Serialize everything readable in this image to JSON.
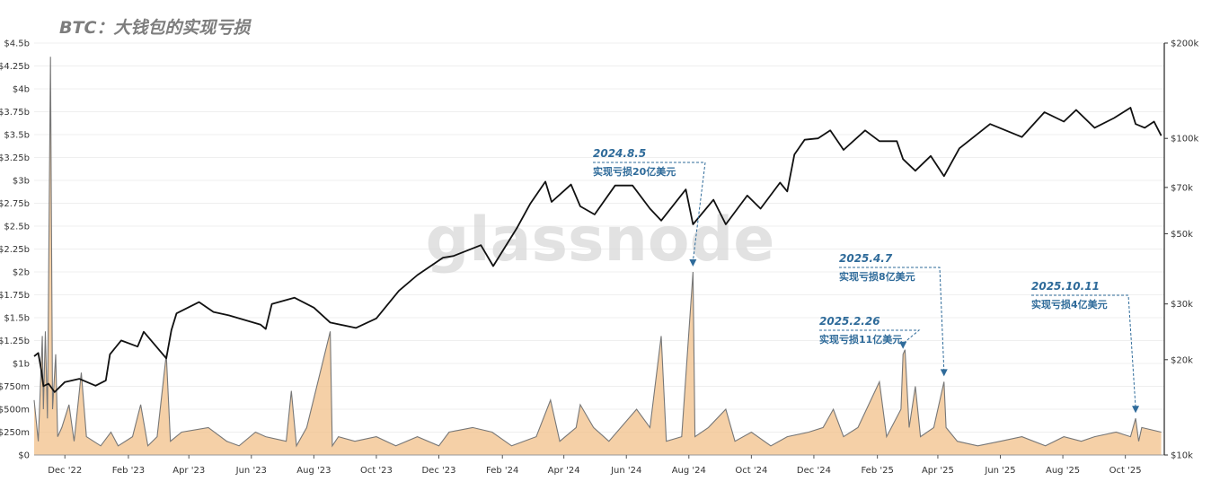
{
  "title": "BTC：大钱包的实现亏损",
  "watermark": "glassnode",
  "colors": {
    "price_line": "#111111",
    "loss_line": "#777777",
    "loss_fill": "#f2c08a",
    "annotation": "#2f6b9a",
    "grid": "#efefef"
  },
  "chart_data": {
    "type": "line",
    "x_range": [
      "2022-11-01",
      "2025-11-08"
    ],
    "y_left": {
      "scale": "linear",
      "range": [
        0,
        4.5
      ],
      "unit": "billion USD",
      "ticks": [
        0,
        0.25,
        0.5,
        0.75,
        1,
        1.25,
        1.5,
        1.75,
        2,
        2.25,
        2.5,
        2.75,
        3,
        3.25,
        3.5,
        3.75,
        4,
        4.25,
        4.5
      ],
      "tick_labels": [
        "$0",
        "$250m",
        "$500m",
        "$750m",
        "$1b",
        "$1.25b",
        "$1.5b",
        "$1.75b",
        "$2b",
        "$2.25b",
        "$2.5b",
        "$2.75b",
        "$3b",
        "$3.25b",
        "$3.5b",
        "$3.75b",
        "$4b",
        "$4.25b",
        "$4.5b"
      ]
    },
    "y_right": {
      "scale": "log",
      "range": [
        10000,
        200000
      ],
      "ticks": [
        10000,
        20000,
        30000,
        50000,
        70000,
        100000,
        200000
      ],
      "tick_labels": [
        "$10k",
        "$20k",
        "$30k",
        "$50k",
        "$70k",
        "$100k",
        "$200k"
      ]
    },
    "x_ticks": [
      {
        "date": "2022-12-01",
        "label": "Dec '22"
      },
      {
        "date": "2023-02-01",
        "label": "Feb '23"
      },
      {
        "date": "2023-04-01",
        "label": "Apr '23"
      },
      {
        "date": "2023-06-01",
        "label": "Jun '23"
      },
      {
        "date": "2023-08-01",
        "label": "Aug '23"
      },
      {
        "date": "2023-10-01",
        "label": "Oct '23"
      },
      {
        "date": "2023-12-01",
        "label": "Dec '23"
      },
      {
        "date": "2024-02-01",
        "label": "Feb '24"
      },
      {
        "date": "2024-04-01",
        "label": "Apr '24"
      },
      {
        "date": "2024-06-01",
        "label": "Jun '24"
      },
      {
        "date": "2024-08-01",
        "label": "Aug '24"
      },
      {
        "date": "2024-10-01",
        "label": "Oct '24"
      },
      {
        "date": "2024-12-01",
        "label": "Dec '24"
      },
      {
        "date": "2025-02-01",
        "label": "Feb '25"
      },
      {
        "date": "2025-04-01",
        "label": "Apr '25"
      },
      {
        "date": "2025-06-01",
        "label": "Jun '25"
      },
      {
        "date": "2025-08-01",
        "label": "Aug '25"
      },
      {
        "date": "2025-10-01",
        "label": "Oct '25"
      }
    ],
    "series": [
      {
        "axis": "right",
        "style": "line",
        "color": "#111111",
        "points": [
          [
            "2022-11-01",
            20500
          ],
          [
            "2022-11-05",
            21000
          ],
          [
            "2022-11-08",
            18500
          ],
          [
            "2022-11-10",
            16500
          ],
          [
            "2022-11-15",
            16800
          ],
          [
            "2022-11-21",
            15800
          ],
          [
            "2022-12-01",
            17000
          ],
          [
            "2022-12-15",
            17400
          ],
          [
            "2022-12-31",
            16550
          ],
          [
            "2023-01-10",
            17200
          ],
          [
            "2023-01-14",
            20800
          ],
          [
            "2023-01-25",
            23000
          ],
          [
            "2023-02-10",
            22000
          ],
          [
            "2023-02-16",
            24500
          ],
          [
            "2023-03-10",
            20200
          ],
          [
            "2023-03-15",
            24800
          ],
          [
            "2023-03-20",
            28000
          ],
          [
            "2023-04-11",
            30400
          ],
          [
            "2023-04-25",
            28300
          ],
          [
            "2023-05-10",
            27600
          ],
          [
            "2023-06-10",
            25800
          ],
          [
            "2023-06-15",
            25000
          ],
          [
            "2023-06-21",
            30000
          ],
          [
            "2023-07-13",
            31400
          ],
          [
            "2023-08-01",
            29200
          ],
          [
            "2023-08-17",
            26200
          ],
          [
            "2023-09-11",
            25200
          ],
          [
            "2023-10-01",
            27000
          ],
          [
            "2023-10-23",
            33000
          ],
          [
            "2023-11-10",
            37000
          ],
          [
            "2023-12-05",
            42000
          ],
          [
            "2023-12-15",
            42500
          ],
          [
            "2024-01-11",
            46000
          ],
          [
            "2024-01-23",
            39500
          ],
          [
            "2024-02-15",
            52000
          ],
          [
            "2024-02-28",
            62000
          ],
          [
            "2024-03-14",
            73000
          ],
          [
            "2024-03-20",
            63000
          ],
          [
            "2024-04-08",
            71500
          ],
          [
            "2024-04-17",
            61000
          ],
          [
            "2024-05-01",
            57500
          ],
          [
            "2024-05-21",
            71000
          ],
          [
            "2024-06-07",
            71000
          ],
          [
            "2024-06-24",
            60000
          ],
          [
            "2024-07-05",
            55000
          ],
          [
            "2024-07-29",
            69000
          ],
          [
            "2024-08-05",
            53500
          ],
          [
            "2024-08-25",
            64000
          ],
          [
            "2024-09-06",
            53500
          ],
          [
            "2024-09-27",
            66000
          ],
          [
            "2024-10-10",
            60000
          ],
          [
            "2024-10-29",
            72500
          ],
          [
            "2024-11-05",
            68000
          ],
          [
            "2024-11-12",
            89000
          ],
          [
            "2024-11-22",
            99000
          ],
          [
            "2024-12-05",
            100000
          ],
          [
            "2024-12-17",
            106000
          ],
          [
            "2024-12-30",
            92000
          ],
          [
            "2025-01-20",
            106000
          ],
          [
            "2025-02-03",
            98000
          ],
          [
            "2025-02-20",
            98000
          ],
          [
            "2025-02-26",
            86000
          ],
          [
            "2025-03-10",
            79000
          ],
          [
            "2025-03-25",
            88000
          ],
          [
            "2025-04-07",
            76000
          ],
          [
            "2025-04-22",
            93000
          ],
          [
            "2025-05-22",
            111000
          ],
          [
            "2025-06-22",
            101000
          ],
          [
            "2025-07-14",
            121000
          ],
          [
            "2025-08-02",
            113000
          ],
          [
            "2025-08-14",
            123000
          ],
          [
            "2025-09-01",
            108000
          ],
          [
            "2025-09-20",
            116000
          ],
          [
            "2025-10-06",
            125000
          ],
          [
            "2025-10-11",
            111000
          ],
          [
            "2025-10-20",
            108000
          ],
          [
            "2025-10-29",
            113000
          ],
          [
            "2025-11-05",
            102000
          ]
        ]
      },
      {
        "axis": "left",
        "style": "area",
        "color": "#777777",
        "fill": "#f2c08a",
        "points": [
          [
            "2022-11-01",
            0.6
          ],
          [
            "2022-11-05",
            0.15
          ],
          [
            "2022-11-09",
            1.3
          ],
          [
            "2022-11-10",
            0.5
          ],
          [
            "2022-11-12",
            1.35
          ],
          [
            "2022-11-14",
            0.4
          ],
          [
            "2022-11-17",
            4.35
          ],
          [
            "2022-11-19",
            0.5
          ],
          [
            "2022-11-22",
            1.1
          ],
          [
            "2022-11-24",
            0.2
          ],
          [
            "2022-11-28",
            0.3
          ],
          [
            "2022-12-05",
            0.55
          ],
          [
            "2022-12-10",
            0.15
          ],
          [
            "2022-12-17",
            0.9
          ],
          [
            "2022-12-22",
            0.2
          ],
          [
            "2023-01-05",
            0.1
          ],
          [
            "2023-01-15",
            0.25
          ],
          [
            "2023-01-22",
            0.1
          ],
          [
            "2023-02-05",
            0.2
          ],
          [
            "2023-02-13",
            0.55
          ],
          [
            "2023-02-20",
            0.1
          ],
          [
            "2023-03-01",
            0.2
          ],
          [
            "2023-03-10",
            1.1
          ],
          [
            "2023-03-14",
            0.15
          ],
          [
            "2023-03-25",
            0.25
          ],
          [
            "2023-04-20",
            0.3
          ],
          [
            "2023-05-08",
            0.15
          ],
          [
            "2023-05-20",
            0.1
          ],
          [
            "2023-06-05",
            0.25
          ],
          [
            "2023-06-15",
            0.2
          ],
          [
            "2023-07-05",
            0.15
          ],
          [
            "2023-07-10",
            0.7
          ],
          [
            "2023-07-15",
            0.1
          ],
          [
            "2023-07-25",
            0.3
          ],
          [
            "2023-08-17",
            1.35
          ],
          [
            "2023-08-19",
            0.1
          ],
          [
            "2023-08-25",
            0.2
          ],
          [
            "2023-09-10",
            0.15
          ],
          [
            "2023-10-01",
            0.2
          ],
          [
            "2023-10-20",
            0.1
          ],
          [
            "2023-11-10",
            0.2
          ],
          [
            "2023-12-01",
            0.1
          ],
          [
            "2023-12-11",
            0.25
          ],
          [
            "2024-01-03",
            0.3
          ],
          [
            "2024-01-22",
            0.25
          ],
          [
            "2024-02-10",
            0.1
          ],
          [
            "2024-03-05",
            0.2
          ],
          [
            "2024-03-19",
            0.6
          ],
          [
            "2024-03-28",
            0.15
          ],
          [
            "2024-04-13",
            0.3
          ],
          [
            "2024-04-17",
            0.55
          ],
          [
            "2024-04-30",
            0.3
          ],
          [
            "2024-05-15",
            0.15
          ],
          [
            "2024-06-11",
            0.5
          ],
          [
            "2024-06-24",
            0.3
          ],
          [
            "2024-07-05",
            1.3
          ],
          [
            "2024-07-10",
            0.15
          ],
          [
            "2024-07-25",
            0.2
          ],
          [
            "2024-08-05",
            2.0
          ],
          [
            "2024-08-07",
            0.2
          ],
          [
            "2024-08-20",
            0.3
          ],
          [
            "2024-09-06",
            0.5
          ],
          [
            "2024-09-15",
            0.15
          ],
          [
            "2024-10-01",
            0.25
          ],
          [
            "2024-10-20",
            0.1
          ],
          [
            "2024-11-05",
            0.2
          ],
          [
            "2024-11-26",
            0.25
          ],
          [
            "2024-12-10",
            0.3
          ],
          [
            "2024-12-20",
            0.5
          ],
          [
            "2024-12-30",
            0.2
          ],
          [
            "2025-01-13",
            0.3
          ],
          [
            "2025-02-03",
            0.8
          ],
          [
            "2025-02-10",
            0.2
          ],
          [
            "2025-02-24",
            0.5
          ],
          [
            "2025-02-26",
            1.1
          ],
          [
            "2025-02-28",
            1.15
          ],
          [
            "2025-03-04",
            0.3
          ],
          [
            "2025-03-10",
            0.75
          ],
          [
            "2025-03-15",
            0.2
          ],
          [
            "2025-03-28",
            0.3
          ],
          [
            "2025-04-07",
            0.8
          ],
          [
            "2025-04-09",
            0.3
          ],
          [
            "2025-04-20",
            0.15
          ],
          [
            "2025-05-10",
            0.1
          ],
          [
            "2025-06-01",
            0.15
          ],
          [
            "2025-06-22",
            0.2
          ],
          [
            "2025-07-15",
            0.1
          ],
          [
            "2025-08-02",
            0.2
          ],
          [
            "2025-08-19",
            0.15
          ],
          [
            "2025-09-01",
            0.2
          ],
          [
            "2025-09-22",
            0.25
          ],
          [
            "2025-10-06",
            0.2
          ],
          [
            "2025-10-11",
            0.4
          ],
          [
            "2025-10-14",
            0.15
          ],
          [
            "2025-10-17",
            0.3
          ],
          [
            "2025-11-05",
            0.25
          ]
        ]
      }
    ],
    "annotations": [
      {
        "date": "2024-08-05",
        "value": 2.0,
        "label_date": "2024.8.5",
        "label_text": "实现亏损20亿美元"
      },
      {
        "date": "2025-02-26",
        "value": 1.1,
        "label_date": "2025.2.26",
        "label_text": "实现亏损11亿美元"
      },
      {
        "date": "2025-04-07",
        "value": 0.8,
        "label_date": "2025.4.7",
        "label_text": "实现亏损8亿美元"
      },
      {
        "date": "2025-10-11",
        "value": 0.4,
        "label_date": "2025.10.11",
        "label_text": "实现亏损4亿美元"
      }
    ],
    "grid": true
  }
}
